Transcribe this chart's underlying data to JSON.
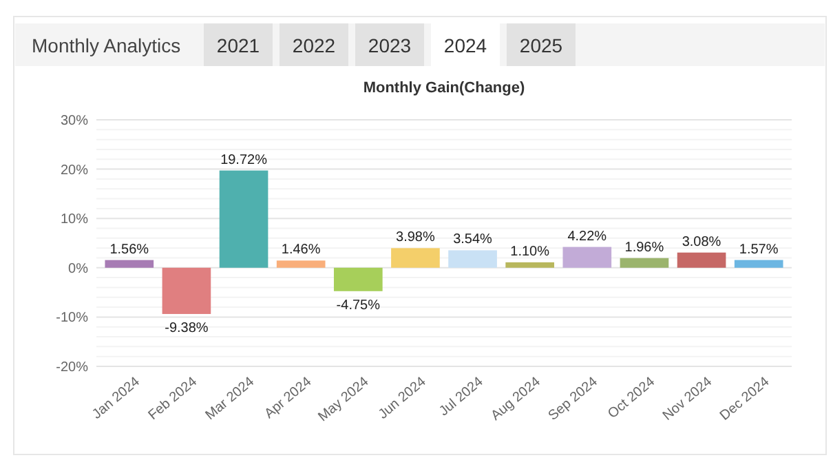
{
  "chart_data": {
    "type": "bar",
    "title": "Monthly Gain(Change)",
    "annotations": [
      "Monthly Analytics",
      "2021",
      "2022",
      "2023",
      "2024",
      "2025"
    ],
    "categories": [
      "Jan 2024",
      "Feb 2024",
      "Mar 2024",
      "Apr 2024",
      "May 2024",
      "Jun 2024",
      "Jul 2024",
      "Aug 2024",
      "Sep 2024",
      "Oct 2024",
      "Nov 2024",
      "Dec 2024"
    ],
    "values": [
      1.56,
      -9.38,
      19.72,
      1.46,
      -4.75,
      3.98,
      3.54,
      1.1,
      4.22,
      1.96,
      3.08,
      1.57
    ],
    "value_labels": [
      "1.56%",
      "-9.38%",
      "19.72%",
      "1.46%",
      "-4.75%",
      "3.98%",
      "3.54%",
      "1.10%",
      "4.22%",
      "1.96%",
      "3.08%",
      "1.57%"
    ],
    "colors": [
      "#a77cb4",
      "#e07f80",
      "#4fb0ae",
      "#f9ae7a",
      "#a7cf5a",
      "#f4cf6a",
      "#c9e1f5",
      "#b8b75d",
      "#c2abd7",
      "#9bb46d",
      "#c66866",
      "#6cb6e2"
    ],
    "ylim": [
      -20,
      30
    ],
    "yticks": [
      {
        "value": -20,
        "label": "-20%"
      },
      {
        "value": -18,
        "label": null
      },
      {
        "value": -16,
        "label": null
      },
      {
        "value": -14,
        "label": null
      },
      {
        "value": -12,
        "label": null
      },
      {
        "value": -10,
        "label": "-10%"
      },
      {
        "value": -8,
        "label": null
      },
      {
        "value": -6,
        "label": null
      },
      {
        "value": -4,
        "label": null
      },
      {
        "value": -2,
        "label": null
      },
      {
        "value": 0,
        "label": "0%"
      },
      {
        "value": 2,
        "label": null
      },
      {
        "value": 4,
        "label": null
      },
      {
        "value": 6,
        "label": null
      },
      {
        "value": 8,
        "label": null
      },
      {
        "value": 10,
        "label": "10%"
      },
      {
        "value": 12,
        "label": null
      },
      {
        "value": 14,
        "label": null
      },
      {
        "value": 16,
        "label": null
      },
      {
        "value": 18,
        "label": null
      },
      {
        "value": 20,
        "label": "20%"
      },
      {
        "value": 22,
        "label": null
      },
      {
        "value": 24,
        "label": null
      },
      {
        "value": 26,
        "label": null
      },
      {
        "value": 28,
        "label": null
      },
      {
        "value": 30,
        "label": "30%"
      }
    ],
    "grid": "y"
  }
}
